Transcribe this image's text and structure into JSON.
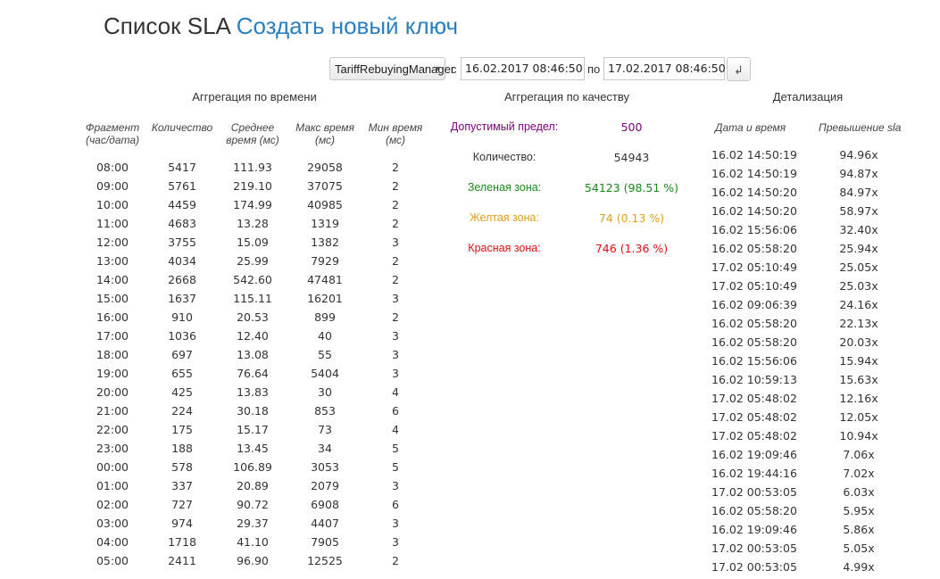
{
  "header": {
    "title": "Список SLA",
    "create_link": "Создать новый ключ"
  },
  "filter": {
    "service_selected": "TariffRebuyingManager",
    "from_label": "с",
    "from_value": "16.02.2017 08:46:50",
    "to_label": "по",
    "to_value": "17.02.2017 08:46:50",
    "submit_icon": "enter-return-icon",
    "submit_glyph": "↲"
  },
  "time_agg": {
    "title": "Аггрегация по времени",
    "columns": [
      {
        "line1": "Фрагмент",
        "line2": "(час/дата)"
      },
      {
        "line1": "Количество",
        "line2": ""
      },
      {
        "line1": "Среднее",
        "line2": "время (мс)"
      },
      {
        "line1": "Макс время",
        "line2": "(мс)"
      },
      {
        "line1": "Мин время",
        "line2": "(мс)"
      }
    ],
    "rows": [
      [
        "08:00",
        "5417",
        "111.93",
        "29058",
        "2"
      ],
      [
        "09:00",
        "5761",
        "219.10",
        "37075",
        "2"
      ],
      [
        "10:00",
        "4459",
        "174.99",
        "40985",
        "2"
      ],
      [
        "11:00",
        "4683",
        "13.28",
        "1319",
        "2"
      ],
      [
        "12:00",
        "3755",
        "15.09",
        "1382",
        "3"
      ],
      [
        "13:00",
        "4034",
        "25.99",
        "7929",
        "2"
      ],
      [
        "14:00",
        "2668",
        "542.60",
        "47481",
        "2"
      ],
      [
        "15:00",
        "1637",
        "115.11",
        "16201",
        "3"
      ],
      [
        "16:00",
        "910",
        "20.53",
        "899",
        "2"
      ],
      [
        "17:00",
        "1036",
        "12.40",
        "40",
        "3"
      ],
      [
        "18:00",
        "697",
        "13.08",
        "55",
        "3"
      ],
      [
        "19:00",
        "655",
        "76.64",
        "5404",
        "3"
      ],
      [
        "20:00",
        "425",
        "13.83",
        "30",
        "4"
      ],
      [
        "21:00",
        "224",
        "30.18",
        "853",
        "6"
      ],
      [
        "22:00",
        "175",
        "15.17",
        "73",
        "4"
      ],
      [
        "23:00",
        "188",
        "13.45",
        "34",
        "5"
      ],
      [
        "00:00",
        "578",
        "106.89",
        "3053",
        "5"
      ],
      [
        "01:00",
        "337",
        "20.89",
        "2079",
        "3"
      ],
      [
        "02:00",
        "727",
        "90.72",
        "6908",
        "6"
      ],
      [
        "03:00",
        "974",
        "29.37",
        "4407",
        "3"
      ],
      [
        "04:00",
        "1718",
        "41.10",
        "7905",
        "3"
      ],
      [
        "05:00",
        "2411",
        "96.90",
        "12525",
        "2"
      ]
    ]
  },
  "quality_agg": {
    "title": "Аггрегация по качеству",
    "rows": [
      {
        "label": "Допустимый предел:",
        "value": "500",
        "color": "#800080"
      },
      {
        "label": "Количество:",
        "value": "54943",
        "color": "#333333"
      },
      {
        "label": "Зеленая зона:",
        "value": "54123 (98.51 %)",
        "color": "#1a8a1a"
      },
      {
        "label": "Желтая зона:",
        "value": "74 (0.13 %)",
        "color": "#e0a020"
      },
      {
        "label": "Красная зона:",
        "value": "746 (1.36 %)",
        "color": "#e01010"
      }
    ]
  },
  "detail": {
    "title": "Детализация",
    "columns": [
      "Дата и время",
      "Превышение sla"
    ],
    "rows": [
      [
        "16.02 14:50:19",
        "94.96x"
      ],
      [
        "16.02 14:50:19",
        "94.87x"
      ],
      [
        "16.02 14:50:20",
        "84.97x"
      ],
      [
        "16.02 14:50:20",
        "58.97x"
      ],
      [
        "16.02 15:56:06",
        "32.40x"
      ],
      [
        "16.02 05:58:20",
        "25.94x"
      ],
      [
        "17.02 05:10:49",
        "25.05x"
      ],
      [
        "17.02 05:10:49",
        "25.03x"
      ],
      [
        "16.02 09:06:39",
        "24.16x"
      ],
      [
        "16.02 05:58:20",
        "22.13x"
      ],
      [
        "16.02 05:58:20",
        "20.03x"
      ],
      [
        "16.02 15:56:06",
        "15.94x"
      ],
      [
        "16.02 10:59:13",
        "15.63x"
      ],
      [
        "17.02 05:48:02",
        "12.16x"
      ],
      [
        "17.02 05:48:02",
        "12.05x"
      ],
      [
        "17.02 05:48:02",
        "10.94x"
      ],
      [
        "16.02 19:09:46",
        "7.06x"
      ],
      [
        "16.02 19:44:16",
        "7.02x"
      ],
      [
        "17.02 00:53:05",
        "6.03x"
      ],
      [
        "16.02 05:58:20",
        "5.95x"
      ],
      [
        "16.02 19:09:46",
        "5.86x"
      ],
      [
        "17.02 00:53:05",
        "5.05x"
      ],
      [
        "17.02 00:53:05",
        "4.99x"
      ]
    ]
  }
}
